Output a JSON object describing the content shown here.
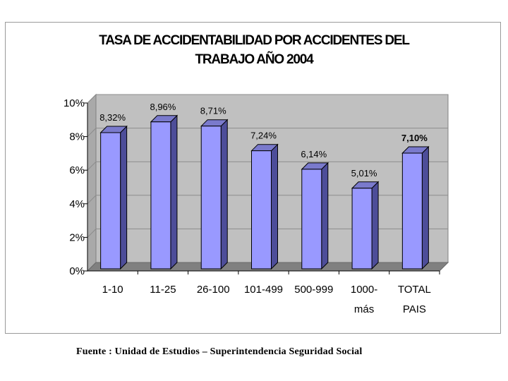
{
  "chart_data": {
    "type": "bar",
    "title": "TASA DE ACCIDENTABILIDAD POR ACCIDENTES DEL TRABAJO AÑO 2004",
    "title_lines": [
      "TASA DE ACCIDENTABILIDAD POR ACCIDENTES DEL",
      "TRABAJO AÑO 2004"
    ],
    "categories": [
      [
        "1-10"
      ],
      [
        "11-25"
      ],
      [
        "26-100"
      ],
      [
        "101-499"
      ],
      [
        "500-999"
      ],
      [
        "1000-",
        "más"
      ],
      [
        "TOTAL",
        "PAIS"
      ]
    ],
    "values": [
      8.32,
      8.96,
      8.71,
      7.24,
      6.14,
      5.01,
      7.1
    ],
    "value_labels": [
      "8,32%",
      "8,96%",
      "8,71%",
      "7,24%",
      "6,14%",
      "5,01%",
      "7,10%"
    ],
    "bold_labels": [
      false,
      false,
      false,
      false,
      false,
      false,
      true
    ],
    "yticks": [
      "0%",
      "2%",
      "4%",
      "6%",
      "8%",
      "10%"
    ],
    "ylim": [
      0,
      10
    ],
    "xlabel": "",
    "ylabel": "",
    "grid": true,
    "legend": "none",
    "colors": {
      "bar_front": "#9999ff",
      "bar_side": "#4d4d99",
      "bar_top": "#7a7acc",
      "wall": "#c0c0c0",
      "floor": "#808080",
      "grid": "#8c8c8c"
    }
  },
  "source_note": "Fuente : Unidad de Estudios – Superintendencia Seguridad Social"
}
